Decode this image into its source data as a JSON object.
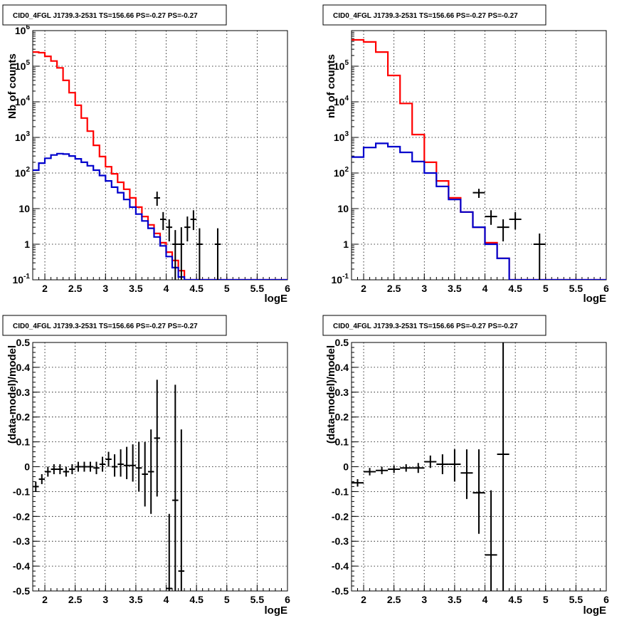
{
  "figure": {
    "colors": {
      "model_total": "#ff0000",
      "model_source": "#0000cc",
      "data": "#000000",
      "grid": "#000000",
      "frame": "#000000"
    }
  },
  "chart_data": [
    {
      "type": "line",
      "title": "CID0_4FGL J1739.3-2531 TS=156.66 PS=-0.27 PS=-0.27",
      "xlabel": "logE",
      "ylabel": "Nb of counts",
      "xlim": [
        1.8,
        6.0
      ],
      "ylim": [
        0.1,
        1000000
      ],
      "yscale": "log",
      "grid": true,
      "xticks": [
        "2",
        "2.5",
        "3",
        "3.5",
        "4",
        "4.5",
        "5",
        "5.5",
        "6"
      ],
      "yticks": [
        "10^-1",
        "1",
        "10",
        "10^2",
        "10^3",
        "10^4",
        "10^5",
        "10^6"
      ],
      "bin_edges": [
        1.8,
        1.9,
        2.0,
        2.1,
        2.2,
        2.3,
        2.4,
        2.5,
        2.6,
        2.7,
        2.8,
        2.9,
        3.0,
        3.1,
        3.2,
        3.3,
        3.4,
        3.5,
        3.6,
        3.7,
        3.8,
        3.9,
        4.0,
        4.1,
        4.2,
        4.3,
        4.4,
        4.5,
        4.6,
        4.7,
        4.8,
        4.9,
        5.0,
        5.1,
        5.2,
        5.3,
        5.4,
        5.5,
        5.6,
        5.7,
        5.8,
        5.9,
        6.0
      ],
      "series": [
        {
          "role": "model_total",
          "values": [
            250000,
            240000,
            190000,
            140000,
            90000,
            40000,
            18000,
            8000,
            3500,
            1500,
            600,
            290,
            150,
            95,
            55,
            35,
            20,
            11,
            6,
            3.5,
            2,
            1.1,
            0.6,
            0.35,
            0.18,
            0.1,
            0.1,
            0.1,
            0.1,
            0.1,
            0.1,
            0.1,
            0.1,
            0.1,
            0.1,
            0.1,
            0.1,
            0.1,
            0.1,
            0.1,
            0.1,
            0.1
          ]
        },
        {
          "role": "model_source",
          "values": [
            120,
            190,
            260,
            320,
            350,
            340,
            300,
            250,
            200,
            160,
            120,
            85,
            60,
            40,
            28,
            18,
            11,
            7,
            4.5,
            2.8,
            1.6,
            0.9,
            0.45,
            0.22,
            0.12,
            0.1,
            0.1,
            0.1,
            0.1,
            0.1,
            0.1,
            0.1,
            0.1,
            0.1,
            0.1,
            0.1,
            0.1,
            0.1,
            0.1,
            0.1,
            0.1,
            0.1
          ]
        }
      ],
      "points": [
        {
          "x": 3.85,
          "y": 20,
          "ylo": 12,
          "yhi": 30
        },
        {
          "x": 3.95,
          "y": 5,
          "ylo": 2.5,
          "yhi": 8
        },
        {
          "x": 4.05,
          "y": 3,
          "ylo": 1.2,
          "yhi": 5
        },
        {
          "x": 4.15,
          "y": 1,
          "ylo": 0.1,
          "yhi": 2.5
        },
        {
          "x": 4.25,
          "y": 1,
          "ylo": 0.1,
          "yhi": 3
        },
        {
          "x": 4.35,
          "y": 3,
          "ylo": 1.2,
          "yhi": 6
        },
        {
          "x": 4.45,
          "y": 5,
          "ylo": 2.5,
          "yhi": 9
        },
        {
          "x": 4.55,
          "y": 1,
          "ylo": 0.1,
          "yhi": 2.8
        },
        {
          "x": 4.85,
          "y": 1,
          "ylo": 0.1,
          "yhi": 2.8
        }
      ]
    },
    {
      "type": "line",
      "title": "CID0_4FGL J1739.3-2531 TS=156.66 PS=-0.27 PS=-0.27",
      "xlabel": "logE",
      "ylabel": "nb of counts",
      "xlim": [
        1.8,
        6.0
      ],
      "ylim": [
        0.1,
        1000000
      ],
      "yscale": "log",
      "grid": true,
      "xticks": [
        "2",
        "2.5",
        "3",
        "3.5",
        "4",
        "4.5",
        "5",
        "5.5",
        "6"
      ],
      "yticks": [
        "10^-1",
        "1",
        "10",
        "10^2",
        "10^3",
        "10^4",
        "10^5"
      ],
      "bin_edges": [
        1.8,
        2.0,
        2.2,
        2.4,
        2.6,
        2.8,
        3.0,
        3.2,
        3.4,
        3.6,
        3.8,
        4.0,
        4.2,
        4.4,
        4.6,
        4.8,
        5.0,
        5.2,
        5.4,
        5.6,
        5.8,
        6.0
      ],
      "series": [
        {
          "role": "model_total",
          "values": [
            550000,
            480000,
            250000,
            55000,
            9000,
            1200,
            200,
            60,
            20,
            8,
            3,
            1.1,
            0.4,
            0.1,
            0.1,
            0.1,
            0.1,
            0.1,
            0.1,
            0.1,
            0.1
          ]
        },
        {
          "role": "model_source",
          "values": [
            280,
            520,
            680,
            550,
            380,
            210,
            100,
            42,
            18,
            8,
            3,
            1,
            0.4,
            0.1,
            0.1,
            0.1,
            0.1,
            0.1,
            0.1,
            0.1,
            0.1
          ]
        }
      ],
      "points": [
        {
          "x": 3.9,
          "y": 28,
          "ylo": 20,
          "yhi": 36
        },
        {
          "x": 4.1,
          "y": 6,
          "ylo": 3.5,
          "yhi": 9
        },
        {
          "x": 4.3,
          "y": 3,
          "ylo": 1.2,
          "yhi": 5
        },
        {
          "x": 4.5,
          "y": 5,
          "ylo": 2.6,
          "yhi": 8
        },
        {
          "x": 4.9,
          "y": 1,
          "ylo": 0.1,
          "yhi": 2
        }
      ]
    },
    {
      "type": "scatter",
      "title": "CID0_4FGL J1739.3-2531 TS=156.66 PS=-0.27 PS=-0.27",
      "xlabel": "logE",
      "ylabel": "(data-model)/model",
      "xlim": [
        1.8,
        6.0
      ],
      "ylim": [
        -0.5,
        0.5
      ],
      "yscale": "linear",
      "grid": true,
      "xticks": [
        "2",
        "2.5",
        "3",
        "3.5",
        "4",
        "4.5",
        "5",
        "5.5",
        "6"
      ],
      "yticks": [
        "-0.5",
        "-0.4",
        "-0.3",
        "-0.2",
        "-0.1",
        "0",
        "0.1",
        "0.2",
        "0.3",
        "0.4",
        "0.5"
      ],
      "xerr": 0.05,
      "points": [
        {
          "x": 1.85,
          "y": -0.08,
          "ylo": -0.1,
          "yhi": -0.06
        },
        {
          "x": 1.95,
          "y": -0.05,
          "ylo": -0.07,
          "yhi": -0.03
        },
        {
          "x": 2.05,
          "y": -0.02,
          "ylo": -0.04,
          "yhi": 0.0
        },
        {
          "x": 2.15,
          "y": -0.01,
          "ylo": -0.03,
          "yhi": 0.01
        },
        {
          "x": 2.25,
          "y": -0.01,
          "ylo": -0.03,
          "yhi": 0.01
        },
        {
          "x": 2.35,
          "y": -0.02,
          "ylo": -0.04,
          "yhi": 0.0
        },
        {
          "x": 2.45,
          "y": -0.01,
          "ylo": -0.03,
          "yhi": 0.01
        },
        {
          "x": 2.55,
          "y": 0.0,
          "ylo": -0.02,
          "yhi": 0.02
        },
        {
          "x": 2.65,
          "y": 0.0,
          "ylo": -0.02,
          "yhi": 0.02
        },
        {
          "x": 2.75,
          "y": 0.0,
          "ylo": -0.02,
          "yhi": 0.02
        },
        {
          "x": 2.85,
          "y": -0.005,
          "ylo": -0.03,
          "yhi": 0.02
        },
        {
          "x": 2.95,
          "y": 0.01,
          "ylo": -0.02,
          "yhi": 0.04
        },
        {
          "x": 3.05,
          "y": 0.03,
          "ylo": 0.0,
          "yhi": 0.06
        },
        {
          "x": 3.15,
          "y": 0.0,
          "ylo": -0.04,
          "yhi": 0.05
        },
        {
          "x": 3.25,
          "y": 0.01,
          "ylo": -0.04,
          "yhi": 0.07
        },
        {
          "x": 3.35,
          "y": 0.005,
          "ylo": -0.05,
          "yhi": 0.08
        },
        {
          "x": 3.45,
          "y": 0.005,
          "ylo": -0.06,
          "yhi": 0.09
        },
        {
          "x": 3.55,
          "y": -0.005,
          "ylo": -0.1,
          "yhi": 0.1
        },
        {
          "x": 3.65,
          "y": -0.03,
          "ylo": -0.16,
          "yhi": 0.1
        },
        {
          "x": 3.75,
          "y": -0.02,
          "ylo": -0.19,
          "yhi": 0.15
        },
        {
          "x": 3.85,
          "y": 0.115,
          "ylo": -0.12,
          "yhi": 0.35
        },
        {
          "x": 4.05,
          "y": -0.49,
          "ylo": -0.5,
          "yhi": -0.19
        },
        {
          "x": 4.15,
          "y": -0.135,
          "ylo": -0.5,
          "yhi": 0.33
        },
        {
          "x": 4.25,
          "y": -0.42,
          "ylo": -0.5,
          "yhi": 0.15
        }
      ]
    },
    {
      "type": "scatter",
      "title": "CID0_4FGL J1739.3-2531 TS=156.66 PS=-0.27 PS=-0.27",
      "xlabel": "logE",
      "ylabel": "(data-model)/model",
      "xlim": [
        1.8,
        6.0
      ],
      "ylim": [
        -0.5,
        0.5
      ],
      "yscale": "linear",
      "grid": true,
      "xticks": [
        "2",
        "2.5",
        "3",
        "3.5",
        "4",
        "4.5",
        "5",
        "5.5",
        "6"
      ],
      "yticks": [
        "-0.5",
        "-0.4",
        "-0.3",
        "-0.2",
        "-0.1",
        "0",
        "0.1",
        "0.2",
        "0.3",
        "0.4",
        "0.5"
      ],
      "xerr": 0.1,
      "points": [
        {
          "x": 1.9,
          "y": -0.065,
          "ylo": -0.08,
          "yhi": -0.05
        },
        {
          "x": 2.1,
          "y": -0.02,
          "ylo": -0.035,
          "yhi": -0.005
        },
        {
          "x": 2.3,
          "y": -0.015,
          "ylo": -0.03,
          "yhi": 0.0
        },
        {
          "x": 2.5,
          "y": -0.01,
          "ylo": -0.025,
          "yhi": 0.005
        },
        {
          "x": 2.7,
          "y": -0.005,
          "ylo": -0.02,
          "yhi": 0.01
        },
        {
          "x": 2.9,
          "y": -0.005,
          "ylo": -0.025,
          "yhi": 0.015
        },
        {
          "x": 3.1,
          "y": 0.02,
          "ylo": -0.005,
          "yhi": 0.045
        },
        {
          "x": 3.3,
          "y": 0.01,
          "ylo": -0.03,
          "yhi": 0.05
        },
        {
          "x": 3.5,
          "y": 0.01,
          "ylo": -0.06,
          "yhi": 0.07
        },
        {
          "x": 3.7,
          "y": -0.025,
          "ylo": -0.13,
          "yhi": 0.07
        },
        {
          "x": 3.9,
          "y": -0.105,
          "ylo": -0.27,
          "yhi": 0.07
        },
        {
          "x": 4.1,
          "y": -0.355,
          "ylo": -0.5,
          "yhi": -0.095
        },
        {
          "x": 4.3,
          "y": 0.05,
          "ylo": -0.5,
          "yhi": 0.5
        }
      ]
    }
  ]
}
